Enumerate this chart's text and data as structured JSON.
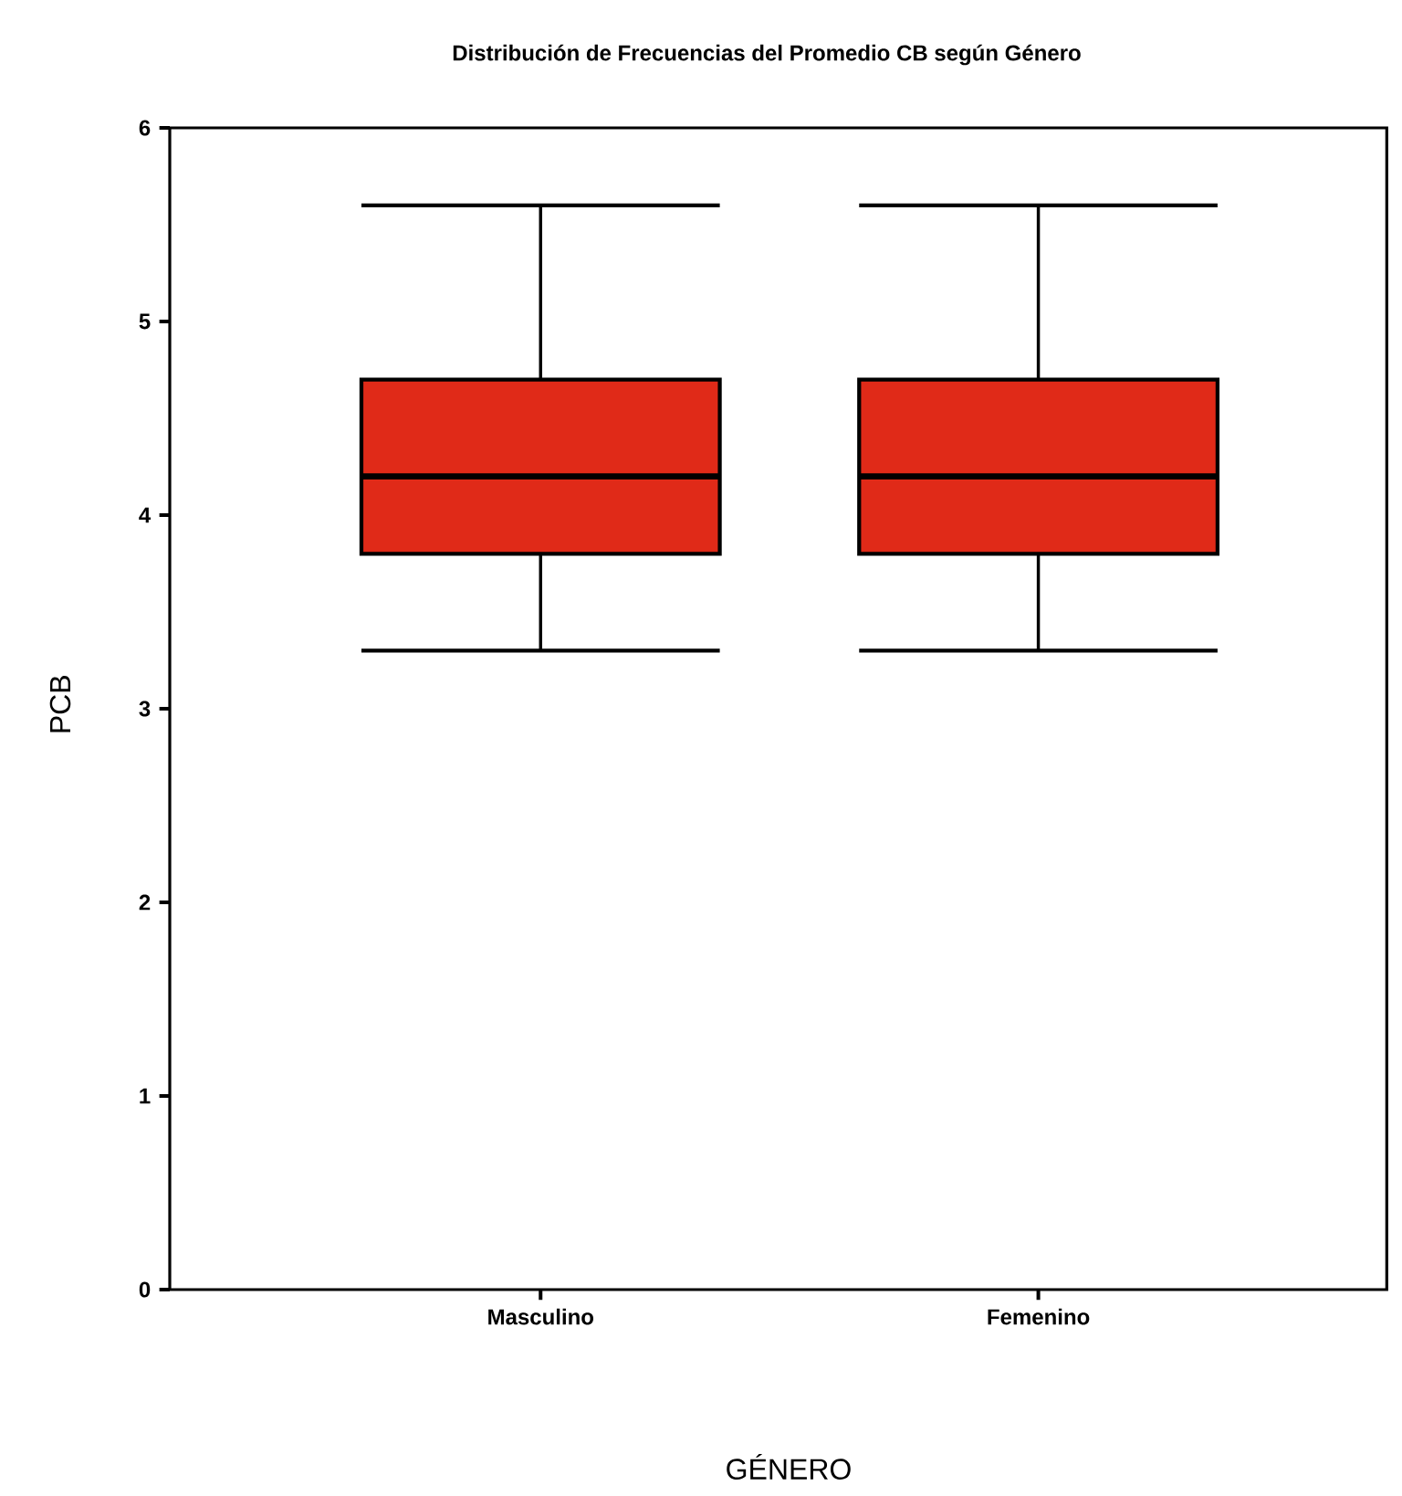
{
  "chart_data": {
    "type": "box",
    "title": "Distribución de Frecuencias del Promedio CB según Género",
    "xlabel": "GÉNERO",
    "ylabel": "PCB",
    "categories": [
      "Masculino",
      "Femenino"
    ],
    "boxes": [
      {
        "low": 3.3,
        "q1": 3.8,
        "median": 4.2,
        "q3": 4.7,
        "high": 5.6
      },
      {
        "low": 3.3,
        "q1": 3.8,
        "median": 4.2,
        "q3": 4.7,
        "high": 5.6
      }
    ],
    "color": "#e02a18",
    "ylim": [
      0,
      6
    ],
    "yticks": [
      0,
      1,
      2,
      3,
      4,
      5,
      6
    ]
  }
}
